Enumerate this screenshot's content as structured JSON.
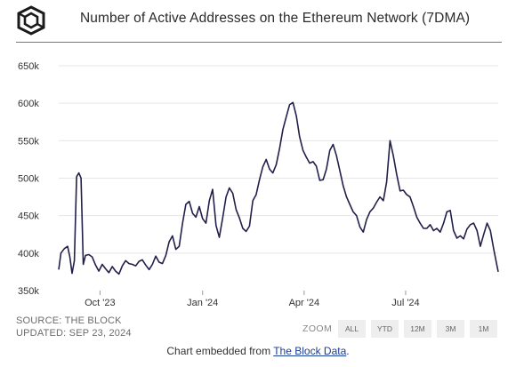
{
  "header": {
    "logo_icon": "the-block-cube-icon",
    "title": "Number of Active Addresses on the Ethereum Network (7DMA)"
  },
  "colors": {
    "accent_rule": "#8a5bd6",
    "line": "#22204a",
    "grid": "#e6e6e6",
    "link": "#1a3e9a"
  },
  "chart_data": {
    "type": "line",
    "title": "Number of Active Addresses on the Ethereum Network (7DMA)",
    "xlabel": "",
    "ylabel": "",
    "xlim": [
      "2023-08-25",
      "2024-09-22"
    ],
    "ylim": [
      350000,
      650000
    ],
    "yticks": [
      350000,
      400000,
      450000,
      500000,
      550000,
      600000,
      650000
    ],
    "ytick_labels": [
      "350k",
      "400k",
      "450k",
      "500k",
      "550k",
      "600k",
      "650k"
    ],
    "xticks": [
      "2023-10-01",
      "2024-01-01",
      "2024-04-01",
      "2024-07-01"
    ],
    "xtick_labels": [
      "Oct '23",
      "Jan '24",
      "Apr '24",
      "Jul '24"
    ],
    "grid": true,
    "legend": "none",
    "series": [
      {
        "values": [
          [
            "2023-08-25",
            378000
          ],
          [
            "2023-08-27",
            400000
          ],
          [
            "2023-08-30",
            406000
          ],
          [
            "2023-09-02",
            409000
          ],
          [
            "2023-09-04",
            395000
          ],
          [
            "2023-09-06",
            373000
          ],
          [
            "2023-09-08",
            390000
          ],
          [
            "2023-09-10",
            502000
          ],
          [
            "2023-09-12",
            507000
          ],
          [
            "2023-09-14",
            500000
          ],
          [
            "2023-09-16",
            385000
          ],
          [
            "2023-09-18",
            397000
          ],
          [
            "2023-09-21",
            398000
          ],
          [
            "2023-09-24",
            395000
          ],
          [
            "2023-09-27",
            384000
          ],
          [
            "2023-09-30",
            376000
          ],
          [
            "2023-10-03",
            385000
          ],
          [
            "2023-10-06",
            379000
          ],
          [
            "2023-10-09",
            374000
          ],
          [
            "2023-10-12",
            382000
          ],
          [
            "2023-10-15",
            376000
          ],
          [
            "2023-10-18",
            372000
          ],
          [
            "2023-10-21",
            383000
          ],
          [
            "2023-10-24",
            390000
          ],
          [
            "2023-10-27",
            386000
          ],
          [
            "2023-10-30",
            385000
          ],
          [
            "2023-11-02",
            383000
          ],
          [
            "2023-11-05",
            389000
          ],
          [
            "2023-11-08",
            391000
          ],
          [
            "2023-11-11",
            384000
          ],
          [
            "2023-11-14",
            378000
          ],
          [
            "2023-11-17",
            385000
          ],
          [
            "2023-11-20",
            396000
          ],
          [
            "2023-11-23",
            388000
          ],
          [
            "2023-11-26",
            386000
          ],
          [
            "2023-11-29",
            397000
          ],
          [
            "2023-12-02",
            415000
          ],
          [
            "2023-12-05",
            423000
          ],
          [
            "2023-12-08",
            405000
          ],
          [
            "2023-12-11",
            409000
          ],
          [
            "2023-12-14",
            440000
          ],
          [
            "2023-12-17",
            465000
          ],
          [
            "2023-12-20",
            469000
          ],
          [
            "2023-12-23",
            453000
          ],
          [
            "2023-12-26",
            448000
          ],
          [
            "2023-12-29",
            462000
          ],
          [
            "2024-01-01",
            446000
          ],
          [
            "2024-01-04",
            440000
          ],
          [
            "2024-01-07",
            470000
          ],
          [
            "2024-01-10",
            485000
          ],
          [
            "2024-01-13",
            437000
          ],
          [
            "2024-01-16",
            421000
          ],
          [
            "2024-01-19",
            447000
          ],
          [
            "2024-01-22",
            475000
          ],
          [
            "2024-01-25",
            487000
          ],
          [
            "2024-01-28",
            480000
          ],
          [
            "2024-01-31",
            458000
          ],
          [
            "2024-02-03",
            447000
          ],
          [
            "2024-02-06",
            433000
          ],
          [
            "2024-02-09",
            429000
          ],
          [
            "2024-02-12",
            436000
          ],
          [
            "2024-02-15",
            470000
          ],
          [
            "2024-02-18",
            478000
          ],
          [
            "2024-02-21",
            498000
          ],
          [
            "2024-02-24",
            515000
          ],
          [
            "2024-02-27",
            525000
          ],
          [
            "2024-03-01",
            512000
          ],
          [
            "2024-03-04",
            507000
          ],
          [
            "2024-03-07",
            518000
          ],
          [
            "2024-03-10",
            540000
          ],
          [
            "2024-03-13",
            565000
          ],
          [
            "2024-03-16",
            582000
          ],
          [
            "2024-03-19",
            598000
          ],
          [
            "2024-03-22",
            601000
          ],
          [
            "2024-03-25",
            583000
          ],
          [
            "2024-03-28",
            555000
          ],
          [
            "2024-03-31",
            537000
          ],
          [
            "2024-04-03",
            528000
          ],
          [
            "2024-04-06",
            520000
          ],
          [
            "2024-04-09",
            522000
          ],
          [
            "2024-04-12",
            516000
          ],
          [
            "2024-04-15",
            497000
          ],
          [
            "2024-04-18",
            498000
          ],
          [
            "2024-04-21",
            512000
          ],
          [
            "2024-04-24",
            537000
          ],
          [
            "2024-04-27",
            545000
          ],
          [
            "2024-04-30",
            530000
          ],
          [
            "2024-05-03",
            510000
          ],
          [
            "2024-05-06",
            490000
          ],
          [
            "2024-05-09",
            475000
          ],
          [
            "2024-05-12",
            465000
          ],
          [
            "2024-05-15",
            455000
          ],
          [
            "2024-05-18",
            450000
          ],
          [
            "2024-05-21",
            435000
          ],
          [
            "2024-05-24",
            428000
          ],
          [
            "2024-05-27",
            445000
          ],
          [
            "2024-05-30",
            455000
          ],
          [
            "2024-06-02",
            460000
          ],
          [
            "2024-06-05",
            468000
          ],
          [
            "2024-06-08",
            475000
          ],
          [
            "2024-06-11",
            470000
          ],
          [
            "2024-06-14",
            495000
          ],
          [
            "2024-06-17",
            550000
          ],
          [
            "2024-06-20",
            530000
          ],
          [
            "2024-06-23",
            505000
          ],
          [
            "2024-06-26",
            483000
          ],
          [
            "2024-06-29",
            484000
          ],
          [
            "2024-07-02",
            478000
          ],
          [
            "2024-07-05",
            475000
          ],
          [
            "2024-07-08",
            462000
          ],
          [
            "2024-07-11",
            448000
          ],
          [
            "2024-07-14",
            440000
          ],
          [
            "2024-07-17",
            433000
          ],
          [
            "2024-07-20",
            433000
          ],
          [
            "2024-07-23",
            438000
          ],
          [
            "2024-07-26",
            430000
          ],
          [
            "2024-07-29",
            433000
          ],
          [
            "2024-08-01",
            428000
          ],
          [
            "2024-08-04",
            440000
          ],
          [
            "2024-08-07",
            455000
          ],
          [
            "2024-08-10",
            457000
          ],
          [
            "2024-08-13",
            430000
          ],
          [
            "2024-08-16",
            420000
          ],
          [
            "2024-08-19",
            423000
          ],
          [
            "2024-08-22",
            419000
          ],
          [
            "2024-08-25",
            432000
          ],
          [
            "2024-08-28",
            438000
          ],
          [
            "2024-08-31",
            440000
          ],
          [
            "2024-09-03",
            430000
          ],
          [
            "2024-09-06",
            409000
          ],
          [
            "2024-09-09",
            425000
          ],
          [
            "2024-09-12",
            440000
          ],
          [
            "2024-09-15",
            430000
          ],
          [
            "2024-09-18",
            405000
          ],
          [
            "2024-09-20",
            390000
          ],
          [
            "2024-09-22",
            375000
          ]
        ]
      }
    ]
  },
  "source": {
    "line1": "SOURCE: THE BLOCK",
    "line2": "UPDATED: SEP 23, 2024"
  },
  "zoom": {
    "label": "ZOOM",
    "buttons": [
      "ALL",
      "YTD",
      "12M",
      "3M",
      "1M"
    ]
  },
  "footer": {
    "prefix": "Chart embedded from ",
    "link_text": "The Block Data",
    "suffix": "."
  }
}
